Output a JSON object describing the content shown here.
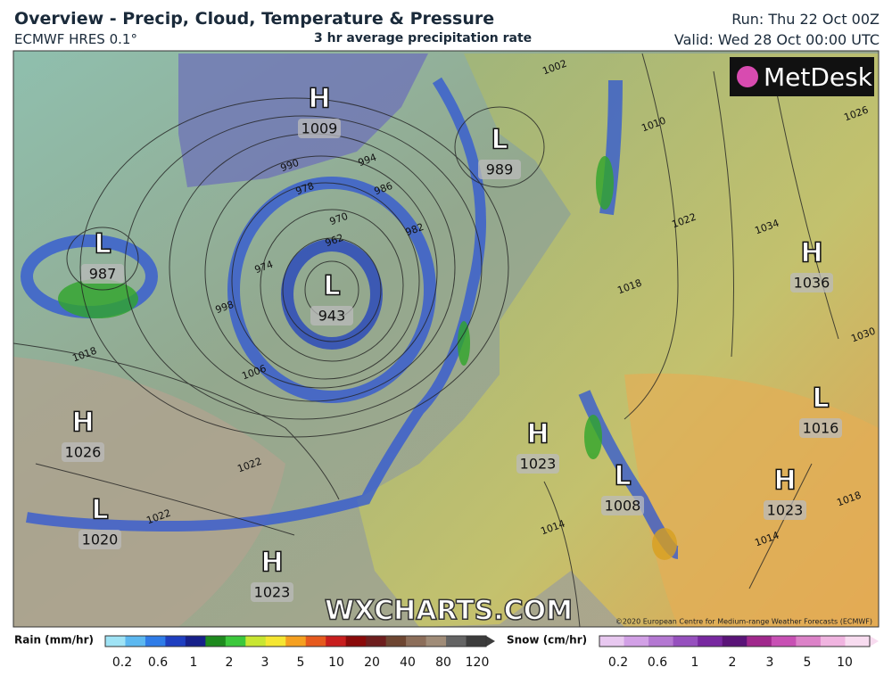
{
  "header": {
    "title": "Overview - Precip, Cloud, Temperature & Pressure",
    "model": "ECMWF HRES 0.1°",
    "subtitle": "3 hr average precipitation rate",
    "run": "Run: Thu 22 Oct 00Z",
    "valid": "Valid: Wed 28 Oct 00:00 UTC"
  },
  "logo": "MetDesk",
  "pressure_centers": [
    {
      "type": "H",
      "value": 1009
    },
    {
      "type": "L",
      "value": 989
    },
    {
      "type": "L",
      "value": 987
    },
    {
      "type": "L",
      "value": 943
    },
    {
      "type": "H",
      "value": 1036
    },
    {
      "type": "H",
      "value": 1026
    },
    {
      "type": "L",
      "value": 1016
    },
    {
      "type": "H",
      "value": 1023
    },
    {
      "type": "L",
      "value": 1008
    },
    {
      "type": "H",
      "value": 1023
    },
    {
      "type": "L",
      "value": 1020
    },
    {
      "type": "H",
      "value": 1023
    }
  ],
  "isobar_labels": [
    990,
    994,
    1002,
    986,
    978,
    970,
    962,
    982,
    974,
    998,
    1006,
    1018,
    1022,
    1022,
    1014,
    1014,
    1010,
    1018,
    1022,
    1034,
    1030,
    1018,
    1026
  ],
  "watermark": "WXCHARTS.COM",
  "copyright": "©2020 European Centre for Medium-range Weather Forecasts (ECMWF)",
  "legend": {
    "rain": {
      "label": "Rain (mm/hr)",
      "ticks": [
        0.2,
        0.6,
        1,
        2,
        3,
        5,
        10,
        20,
        40,
        80,
        120
      ]
    },
    "snow": {
      "label": "Snow (cm/hr)",
      "ticks": [
        0.2,
        0.6,
        1,
        2,
        3,
        5,
        10
      ]
    }
  }
}
